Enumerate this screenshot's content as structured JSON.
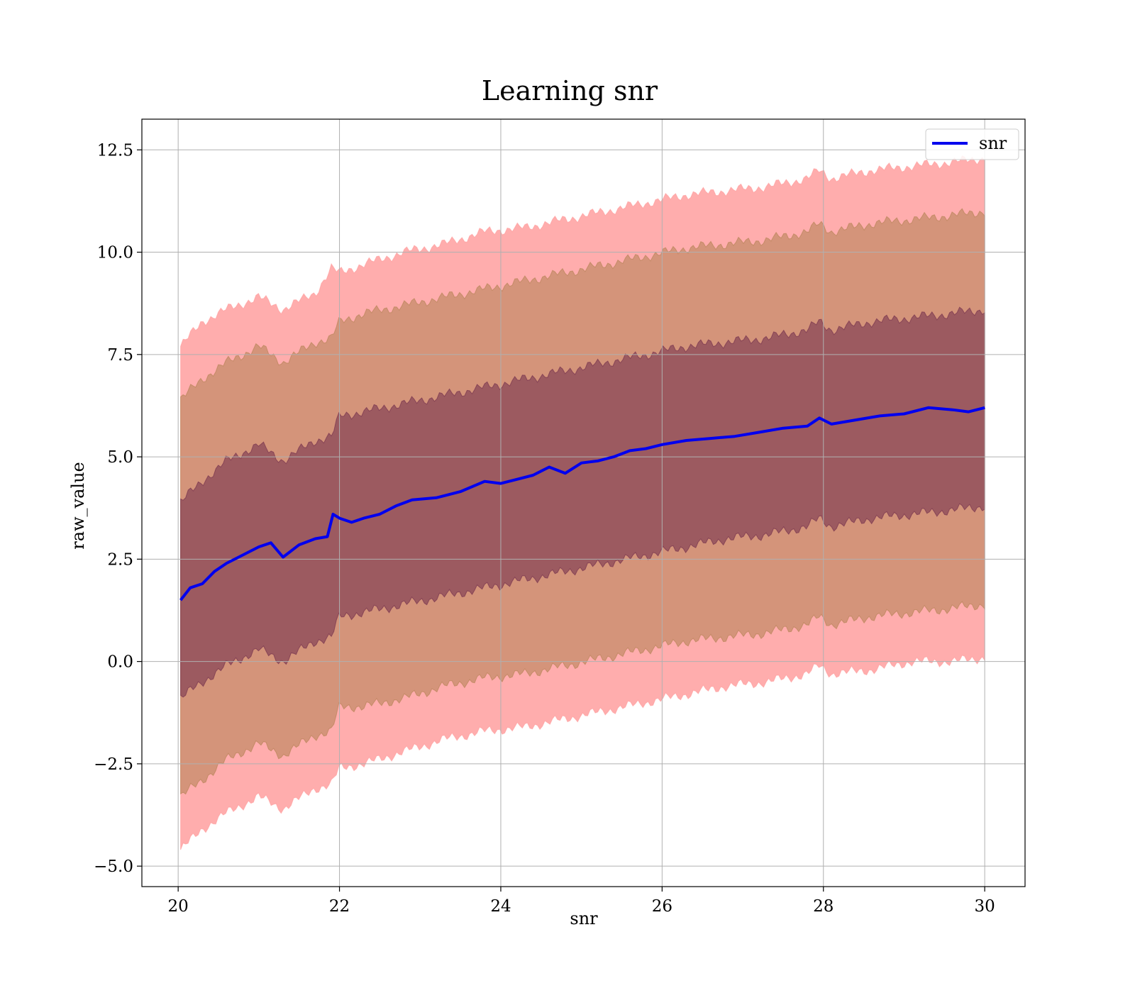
{
  "chart_data": {
    "type": "line",
    "title": "Learning snr",
    "xlabel": "snr",
    "ylabel": "raw_value",
    "xlim": [
      19.55,
      30.5
    ],
    "ylim": [
      -5.5,
      13.25
    ],
    "xticks": [
      20,
      22,
      24,
      26,
      28,
      30
    ],
    "yticks": [
      -5.0,
      -2.5,
      0.0,
      2.5,
      5.0,
      7.5,
      10.0,
      12.5
    ],
    "xtick_labels": [
      "20",
      "22",
      "24",
      "26",
      "28",
      "30"
    ],
    "ytick_labels": [
      "−5.0",
      "−2.5",
      "0.0",
      "2.5",
      "5.0",
      "7.5",
      "10.0",
      "12.5"
    ],
    "grid": true,
    "legend": {
      "position": "top-right",
      "entries": [
        "snr"
      ]
    },
    "series": [
      {
        "name": "snr",
        "color": "#0000ee",
        "x": [
          20.03,
          20.15,
          20.3,
          20.45,
          20.6,
          20.8,
          21.0,
          21.15,
          21.3,
          21.5,
          21.7,
          21.85,
          21.92,
          22.0,
          22.15,
          22.3,
          22.5,
          22.7,
          22.9,
          23.2,
          23.5,
          23.8,
          24.0,
          24.2,
          24.4,
          24.6,
          24.8,
          25.0,
          25.2,
          25.4,
          25.6,
          25.8,
          26.0,
          26.3,
          26.6,
          26.9,
          27.2,
          27.5,
          27.8,
          27.95,
          28.1,
          28.4,
          28.7,
          29.0,
          29.3,
          29.6,
          29.8,
          30.0
        ],
        "y": [
          1.5,
          1.8,
          1.9,
          2.2,
          2.4,
          2.6,
          2.8,
          2.9,
          2.55,
          2.85,
          3.0,
          3.05,
          3.6,
          3.5,
          3.4,
          3.5,
          3.6,
          3.8,
          3.95,
          4.0,
          4.15,
          4.4,
          4.35,
          4.45,
          4.55,
          4.75,
          4.6,
          4.85,
          4.9,
          5.0,
          5.15,
          5.2,
          5.3,
          5.4,
          5.45,
          5.5,
          5.6,
          5.7,
          5.75,
          5.95,
          5.8,
          5.9,
          6.0,
          6.05,
          6.2,
          6.15,
          6.1,
          6.2
        ]
      }
    ],
    "bands": [
      {
        "color": "#ff9999",
        "opacity": 0.8,
        "x": [
          20.03,
          20.3,
          20.6,
          21.0,
          21.3,
          21.7,
          21.9,
          22.0,
          22.3,
          22.8,
          23.3,
          23.8,
          24.3,
          24.8,
          25.3,
          25.8,
          26.3,
          26.8,
          27.3,
          27.8,
          27.95,
          28.1,
          28.6,
          29.1,
          29.6,
          30.0
        ],
        "upper": [
          7.7,
          8.3,
          8.6,
          8.9,
          8.6,
          9.0,
          9.6,
          9.5,
          9.7,
          10.0,
          10.2,
          10.5,
          10.6,
          10.8,
          11.0,
          11.2,
          11.4,
          11.5,
          11.6,
          11.8,
          12.0,
          11.8,
          12.0,
          12.1,
          12.2,
          12.3
        ],
        "lower": [
          -4.6,
          -4.1,
          -3.7,
          -3.3,
          -3.6,
          -3.1,
          -3.0,
          -2.6,
          -2.5,
          -2.2,
          -1.9,
          -1.7,
          -1.6,
          -1.4,
          -1.2,
          -1.0,
          -0.8,
          -0.6,
          -0.5,
          -0.3,
          -0.1,
          -0.3,
          -0.2,
          0.0,
          0.0,
          0.1
        ]
      },
      {
        "color": "#b08050",
        "opacity": 0.55,
        "x": [
          20.03,
          20.3,
          20.6,
          21.0,
          21.3,
          21.7,
          21.9,
          22.0,
          22.3,
          22.8,
          23.3,
          23.8,
          24.3,
          24.8,
          25.3,
          25.8,
          26.3,
          26.8,
          27.3,
          27.8,
          27.95,
          28.1,
          28.6,
          29.1,
          29.6,
          30.0
        ],
        "upper": [
          6.4,
          6.9,
          7.3,
          7.7,
          7.3,
          7.8,
          7.9,
          8.3,
          8.5,
          8.7,
          8.9,
          9.1,
          9.3,
          9.5,
          9.7,
          9.9,
          10.1,
          10.2,
          10.3,
          10.5,
          10.7,
          10.5,
          10.7,
          10.8,
          10.9,
          11.0
        ],
        "lower": [
          -3.3,
          -2.9,
          -2.4,
          -2.0,
          -2.3,
          -1.8,
          -1.7,
          -1.1,
          -1.1,
          -0.9,
          -0.6,
          -0.4,
          -0.3,
          -0.1,
          0.1,
          0.3,
          0.5,
          0.6,
          0.7,
          0.9,
          1.1,
          0.9,
          1.1,
          1.2,
          1.3,
          1.4
        ]
      },
      {
        "color": "#6e2a4a",
        "opacity": 0.55,
        "x": [
          20.03,
          20.3,
          20.6,
          21.0,
          21.3,
          21.7,
          21.9,
          22.0,
          22.3,
          22.8,
          23.3,
          23.8,
          24.3,
          24.8,
          25.3,
          25.8,
          26.3,
          26.8,
          27.3,
          27.8,
          27.95,
          28.1,
          28.6,
          29.1,
          29.6,
          30.0
        ],
        "upper": [
          3.9,
          4.4,
          4.9,
          5.3,
          4.9,
          5.4,
          5.5,
          6.0,
          6.1,
          6.3,
          6.5,
          6.7,
          6.9,
          7.1,
          7.3,
          7.5,
          7.7,
          7.8,
          7.9,
          8.1,
          8.3,
          8.1,
          8.3,
          8.4,
          8.5,
          8.6
        ],
        "lower": [
          -0.9,
          -0.5,
          -0.1,
          0.3,
          0.0,
          0.5,
          0.6,
          1.1,
          1.2,
          1.4,
          1.6,
          1.8,
          2.0,
          2.2,
          2.4,
          2.6,
          2.8,
          3.0,
          3.1,
          3.3,
          3.5,
          3.3,
          3.5,
          3.6,
          3.7,
          3.8
        ]
      }
    ]
  }
}
